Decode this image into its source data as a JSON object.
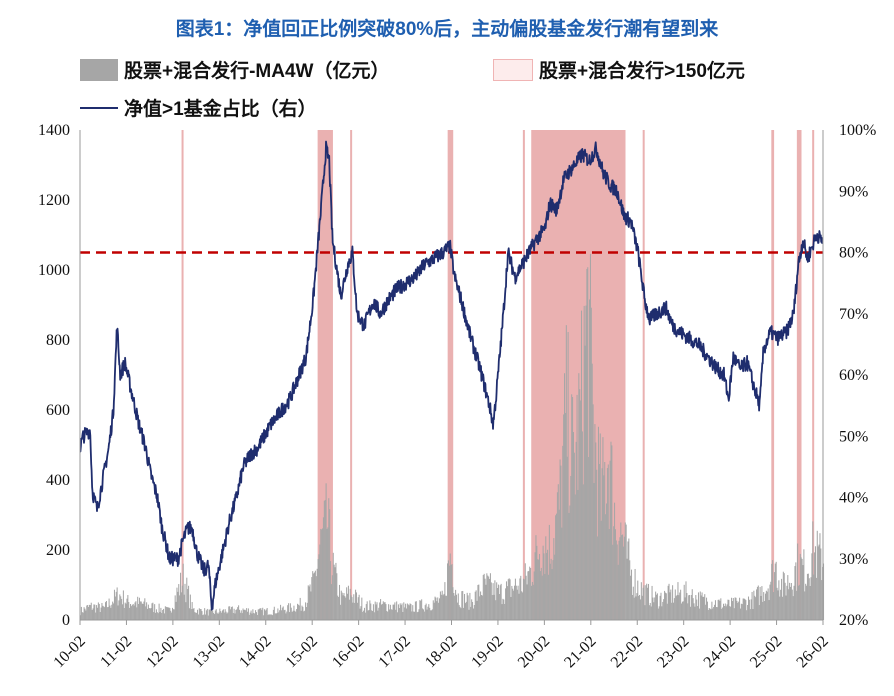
{
  "title": "图表1：净值回正比例突破80%后，主动偏股基金发行潮有望到来",
  "chart_data": {
    "type": "bar",
    "legend": {
      "bar": "股票+混合发行-MA4W（亿元）",
      "shade": "股票+混合发行>150亿元",
      "line": "净值>1基金占比（右）"
    },
    "colors": {
      "bar": "#a6a6a6",
      "shade": "#e8a8a8",
      "shade_border": "#f0b4b4",
      "line": "#1f2d6e",
      "refline": "#c00000",
      "title": "#1f5fb0"
    },
    "left_axis": {
      "min": 0,
      "max": 1400,
      "ticks": [
        "0",
        "200",
        "400",
        "600",
        "800",
        "1000",
        "1200",
        "1400"
      ]
    },
    "right_axis": {
      "min": 20,
      "max": 100,
      "ticks": [
        "20%",
        "30%",
        "40%",
        "50%",
        "60%",
        "70%",
        "80%",
        "90%",
        "100%"
      ]
    },
    "x_axis": {
      "start": 2010.083,
      "end": 2026.083,
      "ticks": [
        "10-02",
        "11-02",
        "12-02",
        "13-02",
        "14-02",
        "15-02",
        "16-02",
        "17-02",
        "18-02",
        "19-02",
        "20-02",
        "21-02",
        "22-02",
        "23-02",
        "24-02",
        "25-02",
        "26-02"
      ]
    },
    "reference_line_pct": 80,
    "shade_periods": [
      [
        2012.27,
        2012.31
      ],
      [
        2015.2,
        2015.53
      ],
      [
        2015.9,
        2015.94
      ],
      [
        2018.0,
        2018.12
      ],
      [
        2019.62,
        2019.66
      ],
      [
        2019.8,
        2021.83
      ],
      [
        2022.2,
        2022.24
      ],
      [
        2024.97,
        2025.03
      ],
      [
        2025.52,
        2025.62
      ],
      [
        2025.85,
        2025.89
      ]
    ],
    "bar_anchors": [
      [
        2010.08,
        30
      ],
      [
        2010.3,
        45
      ],
      [
        2010.6,
        40
      ],
      [
        2010.9,
        85
      ],
      [
        2011.1,
        60
      ],
      [
        2011.4,
        55
      ],
      [
        2011.7,
        40
      ],
      [
        2012.0,
        30
      ],
      [
        2012.3,
        140
      ],
      [
        2012.5,
        35
      ],
      [
        2012.9,
        25
      ],
      [
        2013.2,
        30
      ],
      [
        2013.5,
        35
      ],
      [
        2013.9,
        28
      ],
      [
        2014.2,
        30
      ],
      [
        2014.6,
        40
      ],
      [
        2014.9,
        55
      ],
      [
        2015.1,
        120
      ],
      [
        2015.25,
        250
      ],
      [
        2015.4,
        330
      ],
      [
        2015.5,
        180
      ],
      [
        2015.7,
        70
      ],
      [
        2015.9,
        90
      ],
      [
        2016.2,
        45
      ],
      [
        2016.6,
        50
      ],
      [
        2016.9,
        45
      ],
      [
        2017.2,
        40
      ],
      [
        2017.6,
        55
      ],
      [
        2017.9,
        70
      ],
      [
        2018.05,
        220
      ],
      [
        2018.2,
        80
      ],
      [
        2018.5,
        60
      ],
      [
        2018.8,
        120
      ],
      [
        2019.1,
        90
      ],
      [
        2019.4,
        110
      ],
      [
        2019.6,
        120
      ],
      [
        2019.8,
        170
      ],
      [
        2020.0,
        260
      ],
      [
        2020.2,
        240
      ],
      [
        2020.4,
        380
      ],
      [
        2020.55,
        700
      ],
      [
        2020.7,
        520
      ],
      [
        2020.85,
        680
      ],
      [
        2021.0,
        1030
      ],
      [
        2021.15,
        600
      ],
      [
        2021.3,
        400
      ],
      [
        2021.45,
        560
      ],
      [
        2021.6,
        330
      ],
      [
        2021.75,
        280
      ],
      [
        2021.95,
        150
      ],
      [
        2022.1,
        110
      ],
      [
        2022.25,
        90
      ],
      [
        2022.5,
        70
      ],
      [
        2022.8,
        85
      ],
      [
        2023.1,
        90
      ],
      [
        2023.4,
        70
      ],
      [
        2023.7,
        60
      ],
      [
        2024.0,
        50
      ],
      [
        2024.3,
        55
      ],
      [
        2024.6,
        70
      ],
      [
        2024.9,
        120
      ],
      [
        2025.05,
        180
      ],
      [
        2025.2,
        110
      ],
      [
        2025.4,
        140
      ],
      [
        2025.55,
        190
      ],
      [
        2025.7,
        160
      ],
      [
        2025.85,
        230
      ],
      [
        2026.05,
        200
      ]
    ],
    "line_anchors": [
      [
        2010.08,
        48
      ],
      [
        2010.15,
        50
      ],
      [
        2010.3,
        51
      ],
      [
        2010.35,
        41
      ],
      [
        2010.45,
        38
      ],
      [
        2010.55,
        42
      ],
      [
        2010.7,
        48
      ],
      [
        2010.8,
        54
      ],
      [
        2010.88,
        68
      ],
      [
        2010.95,
        60
      ],
      [
        2011.05,
        62
      ],
      [
        2011.2,
        57
      ],
      [
        2011.35,
        52
      ],
      [
        2011.5,
        48
      ],
      [
        2011.6,
        44
      ],
      [
        2011.75,
        40
      ],
      [
        2011.85,
        35
      ],
      [
        2011.95,
        32
      ],
      [
        2012.0,
        30
      ],
      [
        2012.2,
        30
      ],
      [
        2012.3,
        33
      ],
      [
        2012.4,
        35
      ],
      [
        2012.5,
        35
      ],
      [
        2012.6,
        31
      ],
      [
        2012.75,
        28
      ],
      [
        2012.85,
        29
      ],
      [
        2012.92,
        22
      ],
      [
        2013.0,
        26
      ],
      [
        2013.15,
        31
      ],
      [
        2013.3,
        36
      ],
      [
        2013.45,
        40
      ],
      [
        2013.6,
        45
      ],
      [
        2013.75,
        47
      ],
      [
        2013.9,
        48
      ],
      [
        2014.05,
        50
      ],
      [
        2014.2,
        52
      ],
      [
        2014.4,
        54
      ],
      [
        2014.6,
        56
      ],
      [
        2014.8,
        60
      ],
      [
        2014.95,
        63
      ],
      [
        2015.1,
        72
      ],
      [
        2015.25,
        85
      ],
      [
        2015.38,
        97
      ],
      [
        2015.45,
        95
      ],
      [
        2015.52,
        82
      ],
      [
        2015.6,
        78
      ],
      [
        2015.7,
        73
      ],
      [
        2015.85,
        78
      ],
      [
        2015.95,
        80
      ],
      [
        2016.05,
        70
      ],
      [
        2016.2,
        68
      ],
      [
        2016.4,
        72
      ],
      [
        2016.55,
        70
      ],
      [
        2016.7,
        72
      ],
      [
        2016.9,
        74
      ],
      [
        2017.1,
        75
      ],
      [
        2017.3,
        76
      ],
      [
        2017.5,
        78
      ],
      [
        2017.7,
        79
      ],
      [
        2017.9,
        80
      ],
      [
        2018.05,
        81
      ],
      [
        2018.15,
        76
      ],
      [
        2018.3,
        72
      ],
      [
        2018.5,
        66
      ],
      [
        2018.7,
        61
      ],
      [
        2018.9,
        55
      ],
      [
        2018.98,
        52
      ],
      [
        2019.05,
        57
      ],
      [
        2019.2,
        70
      ],
      [
        2019.3,
        80
      ],
      [
        2019.45,
        76
      ],
      [
        2019.6,
        78
      ],
      [
        2019.75,
        80
      ],
      [
        2019.9,
        82
      ],
      [
        2020.1,
        84
      ],
      [
        2020.2,
        88
      ],
      [
        2020.35,
        87
      ],
      [
        2020.5,
        92
      ],
      [
        2020.7,
        94
      ],
      [
        2020.9,
        96
      ],
      [
        2021.05,
        95
      ],
      [
        2021.2,
        97
      ],
      [
        2021.35,
        93
      ],
      [
        2021.5,
        91
      ],
      [
        2021.65,
        90
      ],
      [
        2021.8,
        86
      ],
      [
        2021.95,
        85
      ],
      [
        2022.1,
        80
      ],
      [
        2022.25,
        72
      ],
      [
        2022.35,
        69
      ],
      [
        2022.5,
        70
      ],
      [
        2022.7,
        71
      ],
      [
        2022.85,
        68
      ],
      [
        2023.0,
        67
      ],
      [
        2023.2,
        66
      ],
      [
        2023.4,
        65
      ],
      [
        2023.6,
        63
      ],
      [
        2023.8,
        61
      ],
      [
        2023.95,
        60
      ],
      [
        2024.05,
        56
      ],
      [
        2024.15,
        63
      ],
      [
        2024.3,
        61
      ],
      [
        2024.45,
        62
      ],
      [
        2024.6,
        58
      ],
      [
        2024.72,
        55
      ],
      [
        2024.8,
        64
      ],
      [
        2024.95,
        67
      ],
      [
        2025.1,
        66
      ],
      [
        2025.3,
        67
      ],
      [
        2025.45,
        70
      ],
      [
        2025.55,
        78
      ],
      [
        2025.65,
        82
      ],
      [
        2025.75,
        79
      ],
      [
        2025.85,
        81
      ],
      [
        2025.95,
        83
      ],
      [
        2026.05,
        82
      ]
    ]
  }
}
